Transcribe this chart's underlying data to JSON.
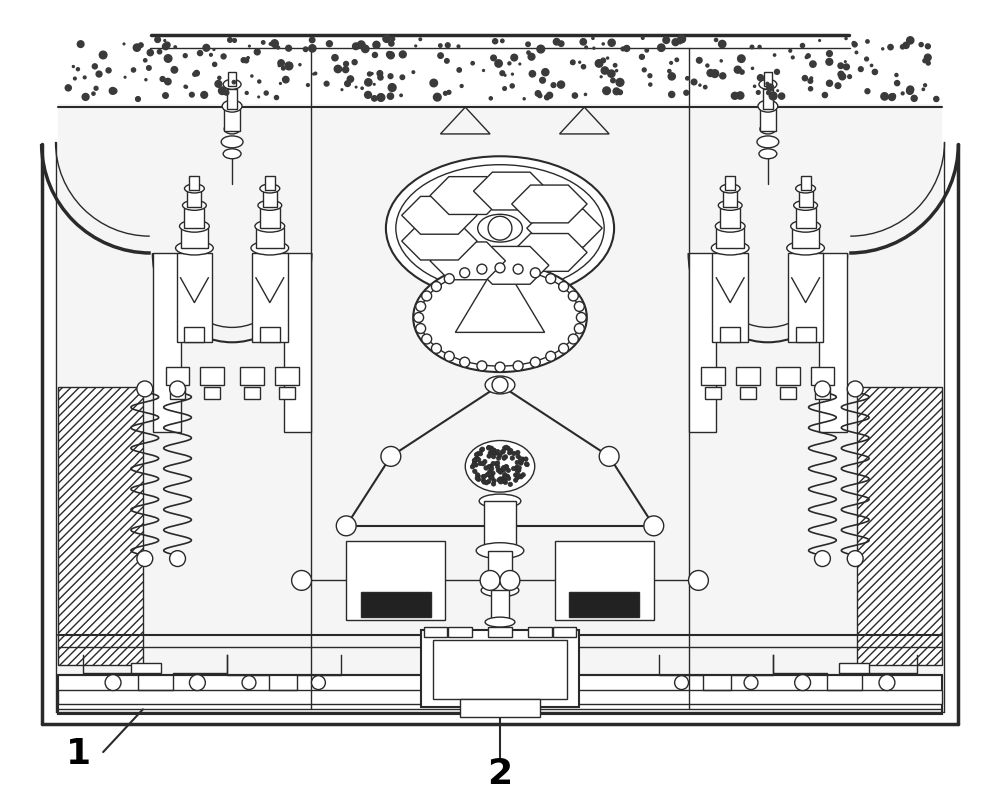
{
  "bg_color": "#ffffff",
  "line_color": "#2a2a2a",
  "label1": "1",
  "label2": "2",
  "fig_width": 10.0,
  "fig_height": 7.94,
  "dpi": 100,
  "speckle_seed": 42,
  "speckle_count": 300,
  "speckle_size_min": 0.0008,
  "speckle_size_max": 0.004
}
